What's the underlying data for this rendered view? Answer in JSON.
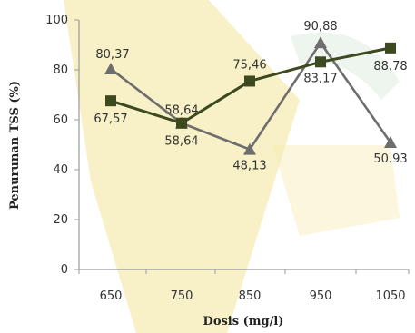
{
  "chart_data": {
    "type": "line",
    "xlabel": "Dosis (mg/l)",
    "ylabel": "Penurunan TSS (%)",
    "categories": [
      "650",
      "750",
      "850",
      "950",
      "1050"
    ],
    "ylim": [
      0,
      100
    ],
    "yticks": [
      "0",
      "20",
      "40",
      "60",
      "80",
      "100"
    ],
    "grid": false,
    "legend": "none",
    "series": [
      {
        "marker": "square",
        "color": "#3d4a1f",
        "values": [
          67.57,
          58.64,
          75.46,
          83.17,
          88.78
        ],
        "labels": [
          "67,57",
          "58,64",
          "75,46",
          "83,17",
          "88,78"
        ]
      },
      {
        "marker": "triangle",
        "color": "#6e6e6e",
        "values": [
          80.37,
          58.64,
          48.13,
          90.88,
          50.93
        ],
        "labels": [
          "80,37",
          "58,64",
          "48,13",
          "90,88",
          "50,93"
        ]
      }
    ],
    "background_watermark_color": "#f6ecb4"
  }
}
